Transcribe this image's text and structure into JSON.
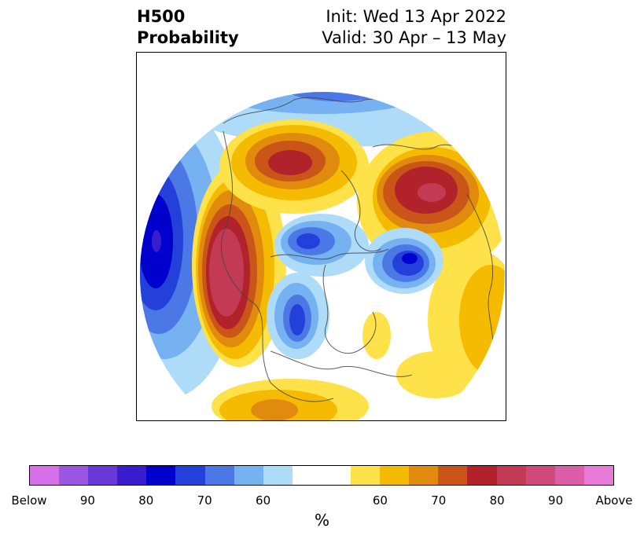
{
  "title": {
    "left_line1": "H500",
    "left_line2": "Probability",
    "right_line1": "Init: Wed 13 Apr 2022",
    "right_line2": "Valid: 30 Apr – 13 May"
  },
  "colorbar": {
    "unit": "%",
    "below_colors": [
      "#d670e8",
      "#9b57e0",
      "#6a37d8",
      "#3a1ccf",
      "#0000cd",
      "#2440da",
      "#4c78e6",
      "#76b1f2",
      "#aedcf8"
    ],
    "neutral_color": "#ffffff",
    "above_colors": [
      "#ffe14a",
      "#f5bb00",
      "#e08a0e",
      "#c95518",
      "#b2222a",
      "#c23a54",
      "#cf4a7a",
      "#dd5ea8",
      "#e87ad8"
    ],
    "tick_labels": [
      "Below",
      "90",
      "80",
      "70",
      "60",
      "60",
      "70",
      "80",
      "90",
      "Above"
    ]
  },
  "colors": {
    "coast": "#444444",
    "frame": "#000000"
  }
}
